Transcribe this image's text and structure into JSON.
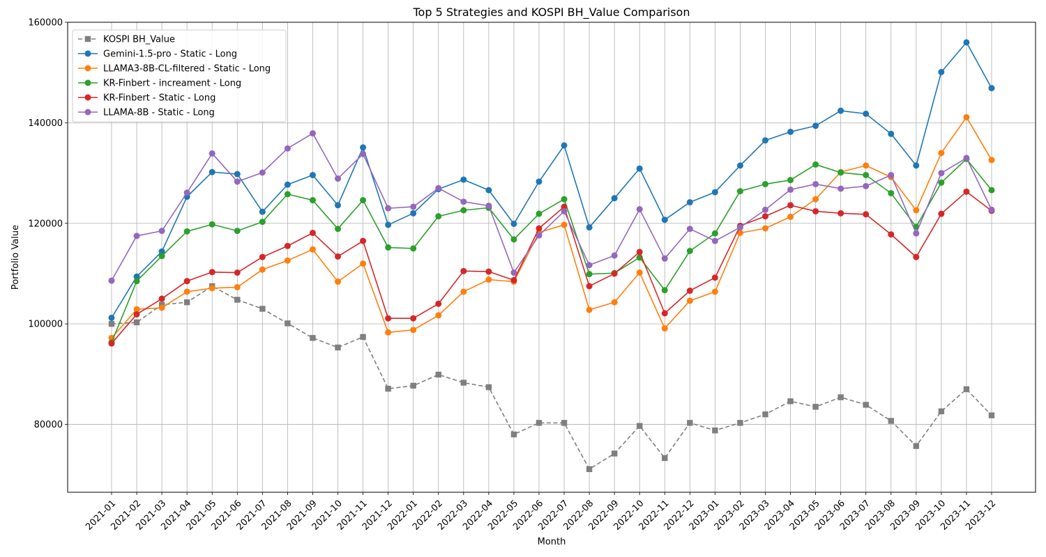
{
  "chart_data": {
    "type": "line",
    "title": "Top 5 Strategies and KOSPI BH_Value Comparison",
    "xlabel": "Month",
    "ylabel": "Portfolio Value",
    "ylim": [
      66500,
      160000
    ],
    "yticks": [
      80000,
      100000,
      120000,
      140000,
      160000
    ],
    "grid": true,
    "legend_position": "top-left",
    "categories": [
      "2021-01",
      "2021-02",
      "2021-03",
      "2021-04",
      "2021-05",
      "2021-06",
      "2021-07",
      "2021-08",
      "2021-09",
      "2021-10",
      "2021-11",
      "2021-12",
      "2022-01",
      "2022-02",
      "2022-03",
      "2022-04",
      "2022-05",
      "2022-06",
      "2022-07",
      "2022-08",
      "2022-09",
      "2022-10",
      "2022-11",
      "2022-12",
      "2023-01",
      "2023-02",
      "2023-03",
      "2023-04",
      "2023-05",
      "2023-06",
      "2023-07",
      "2023-08",
      "2023-09",
      "2023-10",
      "2023-11",
      "2023-12"
    ],
    "series": [
      {
        "name": "KOSPI BH_Value",
        "color": "#7f7f7f",
        "dashed": true,
        "marker": "square",
        "values": [
          100000,
          100300,
          103800,
          104300,
          107500,
          104800,
          103000,
          100100,
          97200,
          95300,
          97400,
          87100,
          87700,
          89900,
          88300,
          87400,
          78000,
          80300,
          80300,
          71100,
          74200,
          79700,
          73300,
          80300,
          78800,
          80300,
          82000,
          84600,
          83500,
          85400,
          83900,
          80700,
          75700,
          82600,
          87000,
          81800
        ]
      },
      {
        "name": "Gemini-1.5-pro - Static - Long",
        "color": "#1f77b4",
        "dashed": false,
        "marker": "circle",
        "values": [
          101200,
          109400,
          114400,
          125300,
          130200,
          129800,
          122300,
          127700,
          129600,
          123600,
          135100,
          119700,
          122000,
          126800,
          128700,
          126600,
          119900,
          128300,
          135500,
          119200,
          125000,
          130900,
          120700,
          124200,
          126200,
          131500,
          136500,
          138200,
          139400,
          142400,
          141800,
          137800,
          131500,
          150100,
          156000,
          146900
        ]
      },
      {
        "name": "LLAMA3-8B-CL-filtered - Static - Long",
        "color": "#ff7f0e",
        "dashed": false,
        "marker": "circle",
        "values": [
          97200,
          102900,
          103200,
          106400,
          107100,
          107300,
          110800,
          112600,
          114800,
          108400,
          112000,
          98300,
          98800,
          101700,
          106400,
          108800,
          108400,
          118200,
          119700,
          102800,
          104300,
          110200,
          99100,
          104600,
          106400,
          118100,
          119000,
          121300,
          124800,
          130200,
          131500,
          129200,
          122600,
          134000,
          141100,
          132600
        ]
      },
      {
        "name": "KR-Finbert - increament - Long",
        "color": "#2ca02c",
        "dashed": false,
        "marker": "circle",
        "values": [
          96300,
          108500,
          113500,
          118400,
          119800,
          118500,
          120300,
          125800,
          124600,
          118900,
          124600,
          115200,
          115000,
          121400,
          122600,
          123100,
          116800,
          121900,
          124800,
          109900,
          110100,
          113200,
          106700,
          114500,
          118000,
          126400,
          127800,
          128600,
          131700,
          130100,
          129600,
          126000,
          119300,
          128100,
          132800,
          126600
        ]
      },
      {
        "name": "KR-Finbert - Static - Long",
        "color": "#d62728",
        "dashed": false,
        "marker": "circle",
        "values": [
          96100,
          101900,
          105000,
          108500,
          110300,
          110200,
          113300,
          115500,
          118100,
          113400,
          116500,
          101100,
          101100,
          104000,
          110500,
          110400,
          108700,
          119000,
          123300,
          107500,
          110000,
          114300,
          102100,
          106600,
          109200,
          119500,
          121400,
          123600,
          122400,
          122000,
          121800,
          117800,
          113300,
          121900,
          126300,
          122500
        ]
      },
      {
        "name": "LLAMA-8B - Static - Long",
        "color": "#9467bd",
        "dashed": false,
        "marker": "circle",
        "values": [
          108600,
          117500,
          118500,
          126100,
          133900,
          128300,
          130100,
          134900,
          137900,
          128900,
          133800,
          123000,
          123300,
          127000,
          124300,
          123500,
          110200,
          117600,
          122400,
          111700,
          113600,
          122800,
          113000,
          118900,
          116500,
          119200,
          122700,
          126700,
          127800,
          126900,
          127400,
          129600,
          118000,
          130000,
          133000,
          122700
        ]
      }
    ]
  }
}
